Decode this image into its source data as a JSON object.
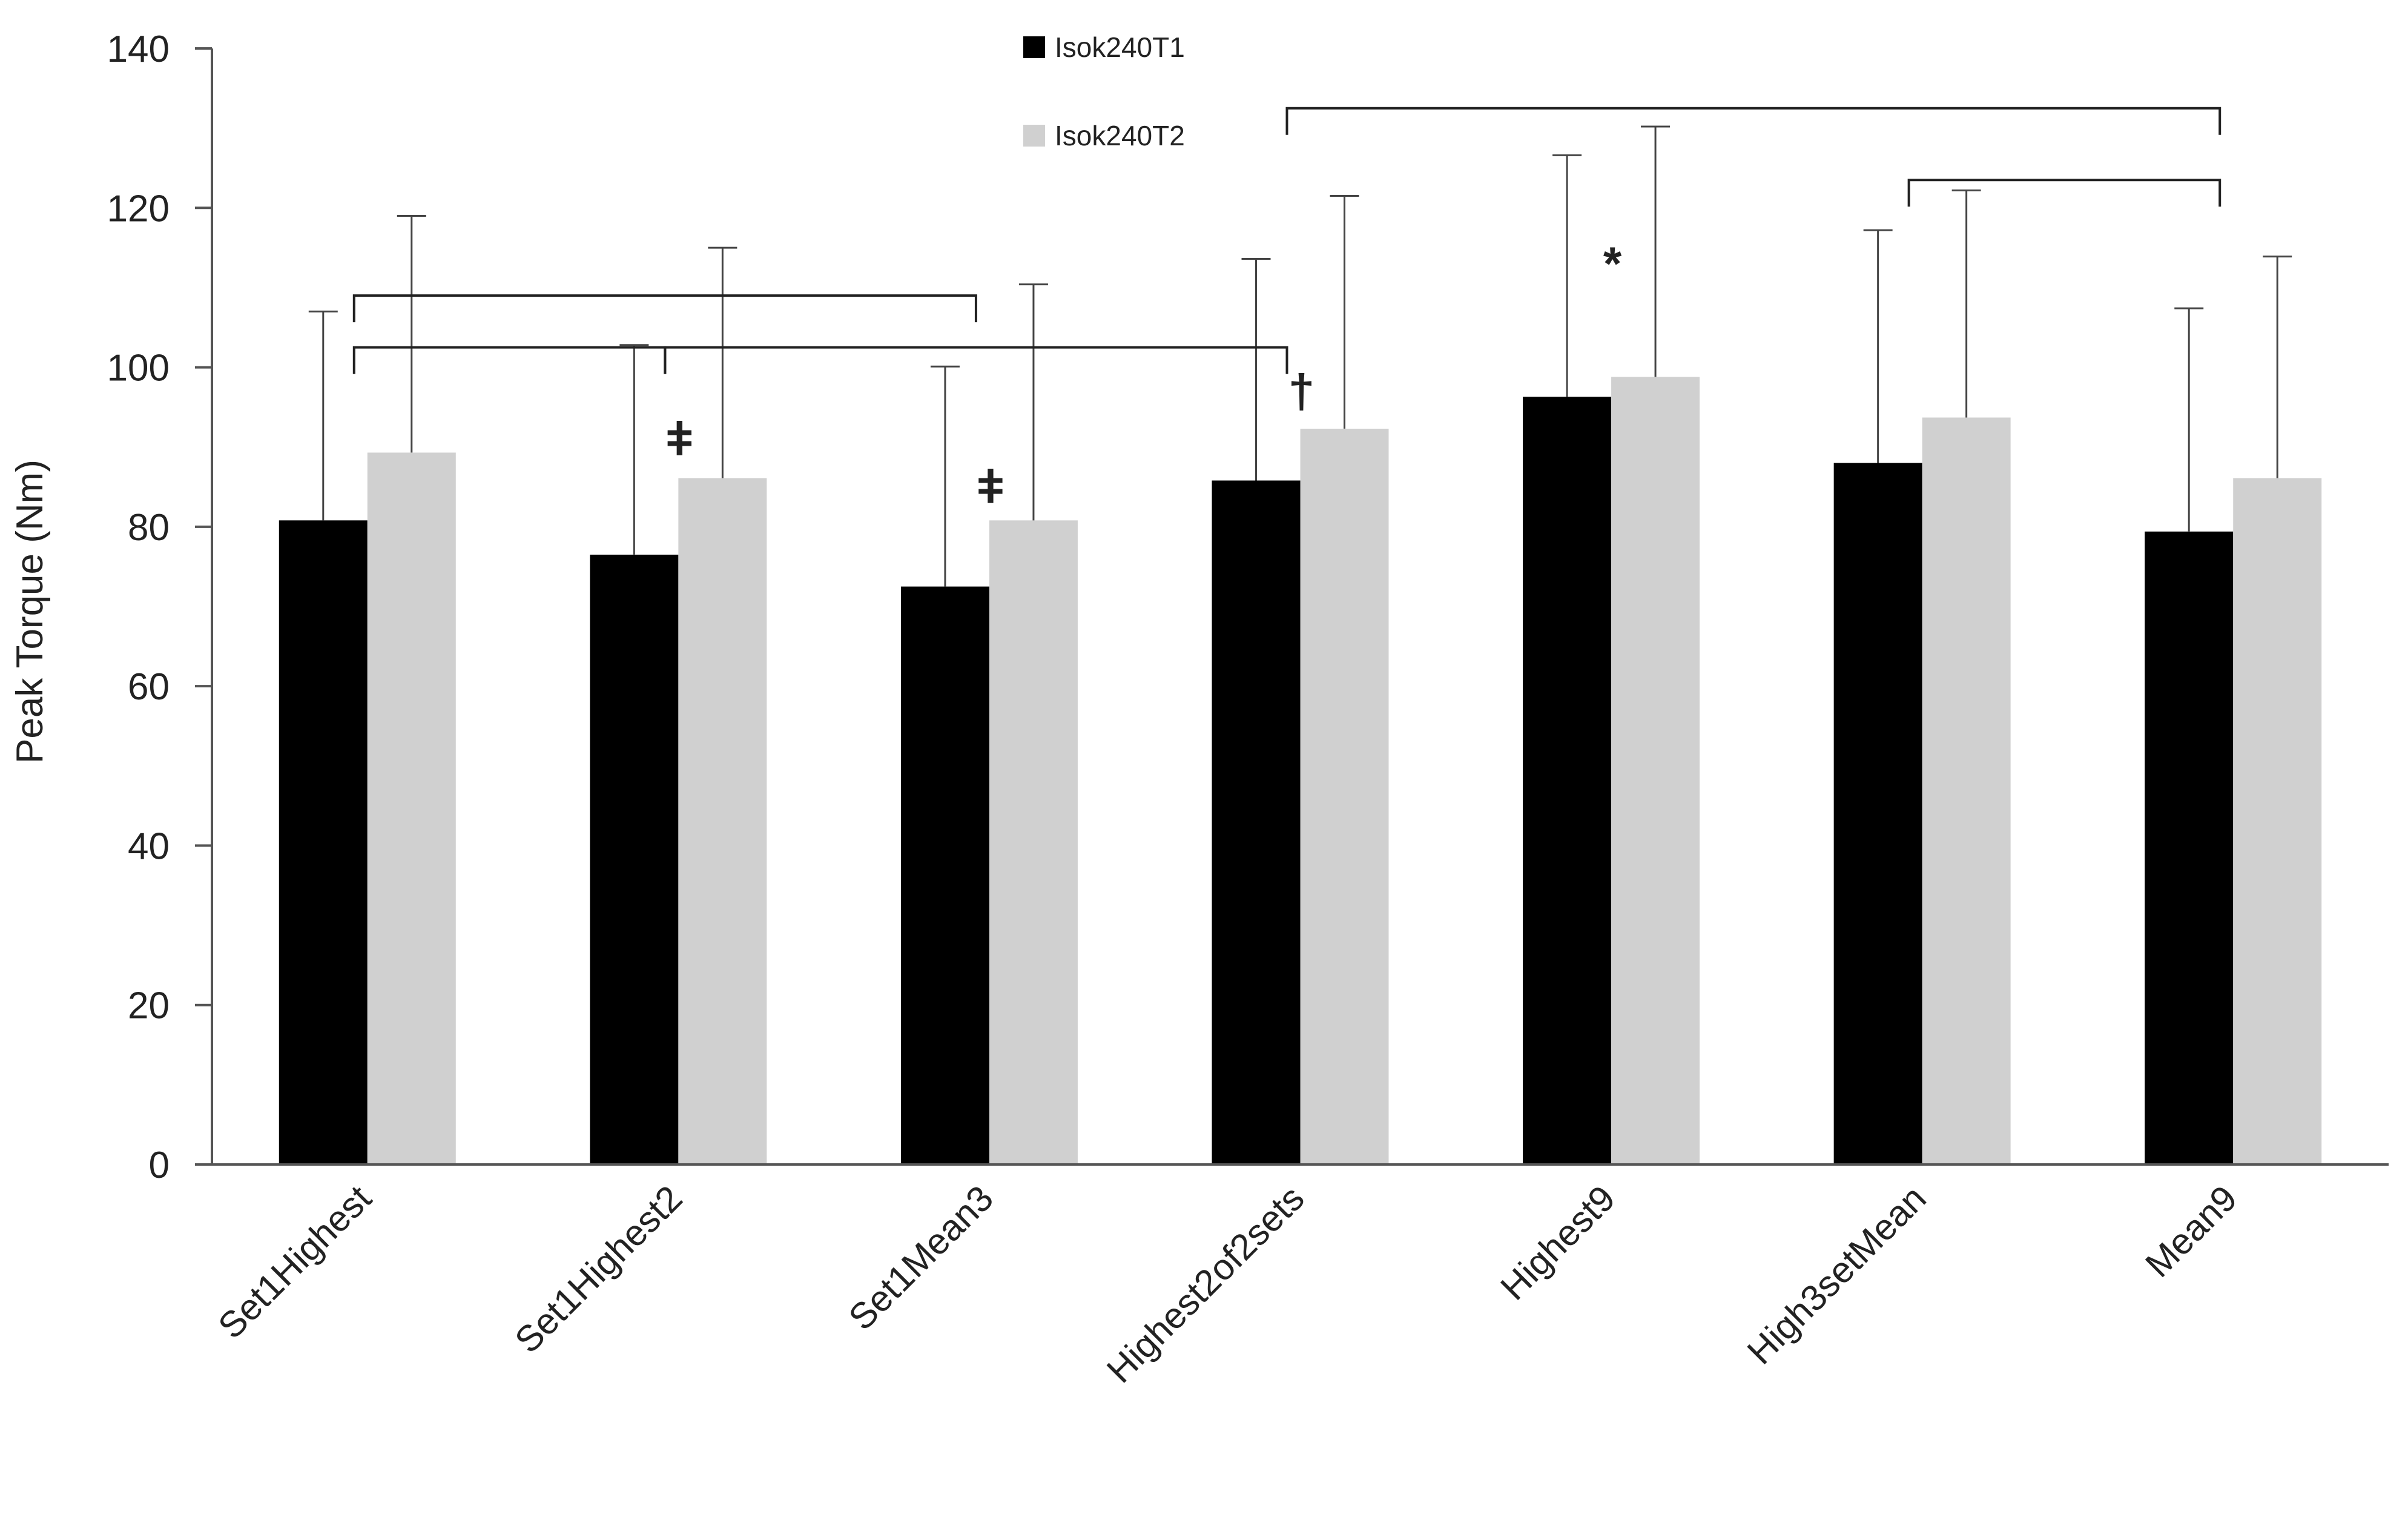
{
  "chart_data": {
    "type": "bar",
    "title": "",
    "xlabel": "",
    "ylabel": "Peak Torque (Nm)",
    "ylim": [
      0,
      140
    ],
    "yticks": [
      0,
      20,
      40,
      60,
      80,
      100,
      120,
      140
    ],
    "grid": false,
    "legend_position": "top-center",
    "categories": [
      "Set1Highest",
      "Set1Highest2",
      "Set1Mean3",
      "Highest2of2sets",
      "Highest9",
      "High3setMean",
      "Mean9"
    ],
    "series": [
      {
        "name": "Isok240T1",
        "color": "#000000",
        "values": [
          80.8,
          76.5,
          72.5,
          85.8,
          96.3,
          88.0,
          79.4
        ],
        "errors": [
          26.2,
          26.3,
          27.6,
          27.8,
          30.3,
          29.2,
          28.0
        ]
      },
      {
        "name": "Isok240T2",
        "color": "#d0d0d0",
        "values": [
          89.3,
          86.1,
          80.8,
          92.3,
          98.8,
          93.7,
          86.1
        ],
        "errors": [
          29.7,
          28.9,
          29.6,
          29.2,
          31.4,
          28.5,
          27.8
        ]
      }
    ],
    "annotations": [
      {
        "text": "ǂ",
        "category": "Set1Highest2",
        "y": 89
      },
      {
        "text": "ǂ",
        "category": "Set1Mean3",
        "y": 83
      },
      {
        "text": "†",
        "category": "Highest2of2sets",
        "y": 95
      },
      {
        "text": "*",
        "category": "Highest9",
        "y": 111
      }
    ],
    "brackets": [
      {
        "from": "Set1Highest",
        "to": "Set1Mean3",
        "y": 109
      },
      {
        "from": "Set1Highest",
        "to": "Set1Highest2",
        "y": 102.5
      },
      {
        "from": "Set1Highest2",
        "to": "Highest2of2sets",
        "y": 102.5
      },
      {
        "from": "Highest2of2sets",
        "to": "Mean9",
        "y": 132.5
      },
      {
        "from": "High3setMean",
        "to": "Mean9",
        "y": 123.5
      }
    ]
  }
}
